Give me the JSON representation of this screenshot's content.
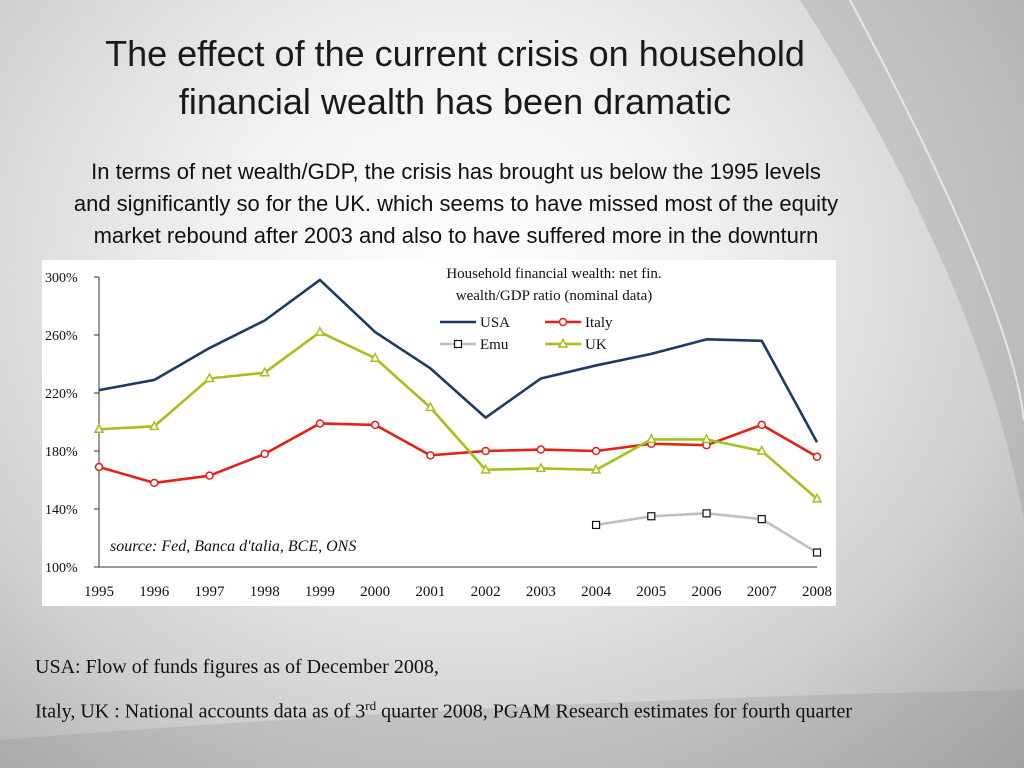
{
  "slide": {
    "title_lines": [
      "The effect of the current crisis on household",
      "financial wealth has been dramatic"
    ],
    "subtitle_lines": [
      "In terms of net wealth/GDP, the crisis has brought us below the 1995 levels",
      "and significantly so for the UK. which seems to have missed most of the equity",
      "market rebound after 2003 and also to have suffered more in the downturn"
    ],
    "notes": {
      "line1": "USA: Flow of funds figures as of December 2008,",
      "line2_pre": "Italy, UK : National accounts data as of 3",
      "line2_sup": "rd",
      "line2_post": " quarter 2008, PGAM Research estimates for fourth quarter"
    }
  },
  "chart_data": {
    "type": "line",
    "title_lines": [
      "Household financial wealth: net fin.",
      "wealth/GDP ratio (nominal data)"
    ],
    "source": "source: Fed, Banca d'talia, BCE, ONS",
    "categories": [
      "1995",
      "1996",
      "1997",
      "1998",
      "1999",
      "2000",
      "2001",
      "2002",
      "2003",
      "2004",
      "2005",
      "2006",
      "2007",
      "2008"
    ],
    "ylim": [
      100,
      300
    ],
    "yticks": [
      100,
      140,
      180,
      220,
      260,
      300
    ],
    "ytick_labels": [
      "100%",
      "140%",
      "180%",
      "220%",
      "260%",
      "300%"
    ],
    "legend_position": "top-right",
    "series": [
      {
        "name": "USA",
        "color": "#1f3b63",
        "marker": "none",
        "values": [
          222,
          229,
          251,
          270,
          298,
          262,
          237,
          203,
          230,
          239,
          247,
          257,
          256,
          186
        ]
      },
      {
        "name": "Italy",
        "color": "#e32119",
        "marker": "circle",
        "values": [
          169,
          158,
          163,
          178,
          199,
          198,
          177,
          180,
          181,
          180,
          185,
          184,
          198,
          176
        ]
      },
      {
        "name": "Emu",
        "color": "#bfbfbf",
        "marker": "square",
        "values": [
          null,
          null,
          null,
          null,
          null,
          null,
          null,
          null,
          null,
          129,
          135,
          137,
          133,
          110
        ]
      },
      {
        "name": "UK",
        "color": "#9dc41b",
        "marker": "triangle",
        "values": [
          195,
          197,
          230,
          234,
          262,
          244,
          210,
          167,
          168,
          167,
          188,
          188,
          180,
          147
        ]
      }
    ]
  }
}
